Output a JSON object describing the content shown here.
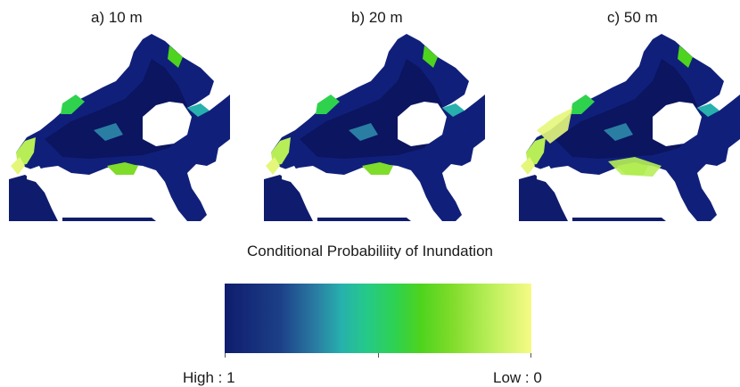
{
  "panels": [
    {
      "label": "a) 10 m"
    },
    {
      "label": "b) 20 m"
    },
    {
      "label": "c) 50 m"
    }
  ],
  "legend": {
    "title": "Conditional Probabiliity of Inundation",
    "high_label": "High : 1",
    "low_label": "Low : 0"
  },
  "colors": {
    "high": "#0f1c6d",
    "mid": "#2fd24d",
    "low": "#f6fb86"
  }
}
